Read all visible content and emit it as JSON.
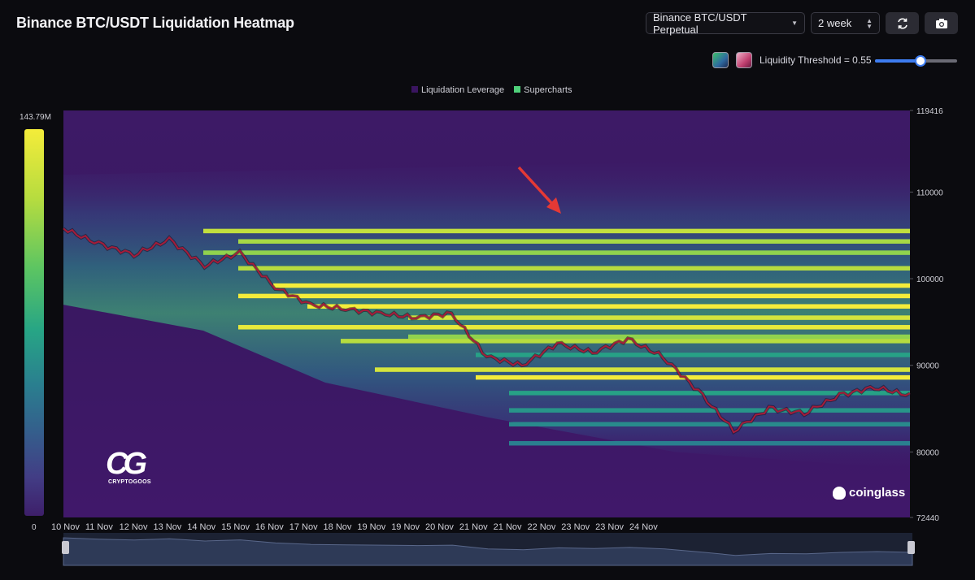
{
  "header": {
    "title": "Binance BTC/USDT Liquidation Heatmap",
    "pair_select": "Binance BTC/USDT Perpetual",
    "range_select": "2 week",
    "refresh_icon": "refresh-icon",
    "camera_icon": "camera-icon"
  },
  "controls": {
    "threshold_label": "Liquidity Threshold = 0.55",
    "threshold_value": 0.55
  },
  "colors": {
    "accent": "#3d7cf0",
    "liquidation_leverage": "#3a1560",
    "supercharts": "#4fd07a",
    "price_line": "#a51c3a"
  },
  "legend": {
    "liquidation_leverage": "Liquidation Leverage",
    "supercharts": "Supercharts"
  },
  "colorbar": {
    "max_label": "143.79M",
    "min_label": "0"
  },
  "watermarks": {
    "cryptogoos": "CRYPTOGOOS",
    "coinglass": "coinglass"
  },
  "chart_data": {
    "type": "heatmap",
    "title": "Binance BTC/USDT Liquidation Heatmap",
    "x_labels": [
      "10 Nov",
      "11 Nov",
      "12 Nov",
      "13 Nov",
      "14 Nov",
      "15 Nov",
      "16 Nov",
      "17 Nov",
      "18 Nov",
      "19 Nov",
      "19 Nov",
      "20 Nov",
      "21 Nov",
      "21 Nov",
      "22 Nov",
      "23 Nov",
      "23 Nov",
      "24 Nov"
    ],
    "y_labels": [
      "119416",
      "110000",
      "100000",
      "90000",
      "80000",
      "72440"
    ],
    "ylim": [
      72440,
      119416
    ],
    "color_range": [
      0,
      143790000
    ],
    "price_path": {
      "x": [
        "10 Nov",
        "11 Nov",
        "12 Nov",
        "12 Nov",
        "13 Nov",
        "13 Nov",
        "14 Nov",
        "14 Nov",
        "15 Nov",
        "16 Nov",
        "17 Nov",
        "17 Nov",
        "18 Nov",
        "18 Nov",
        "19 Nov",
        "19 Nov",
        "20 Nov",
        "20 Nov",
        "21 Nov",
        "21 Nov",
        "22 Nov",
        "22 Nov",
        "23 Nov",
        "24 Nov",
        "24 Nov"
      ],
      "price": [
        105800,
        104000,
        102800,
        104500,
        101500,
        103000,
        99000,
        97000,
        96500,
        96000,
        95500,
        96000,
        91000,
        90000,
        92500,
        91500,
        93000,
        91000,
        87000,
        82500,
        85000,
        84500,
        86500,
        87500,
        86500
      ]
    },
    "bands": [
      {
        "price": 105500,
        "start": "13 Nov",
        "intensity": 0.92
      },
      {
        "price": 104300,
        "start": "14 Nov",
        "intensity": 0.88
      },
      {
        "price": 103000,
        "start": "13 Nov",
        "intensity": 0.85
      },
      {
        "price": 101200,
        "start": "14 Nov",
        "intensity": 0.9
      },
      {
        "price": 99200,
        "start": "15 Nov",
        "intensity": 1.0
      },
      {
        "price": 98000,
        "start": "14 Nov",
        "intensity": 1.0
      },
      {
        "price": 96800,
        "start": "16 Nov",
        "intensity": 1.0
      },
      {
        "price": 95500,
        "start": "19 Nov",
        "intensity": 0.95
      },
      {
        "price": 94400,
        "start": "14 Nov",
        "intensity": 0.98
      },
      {
        "price": 93300,
        "start": "19 Nov",
        "intensity": 0.85
      },
      {
        "price": 92800,
        "start": "17 Nov",
        "intensity": 0.9
      },
      {
        "price": 91200,
        "start": "20 Nov",
        "intensity": 0.6
      },
      {
        "price": 89500,
        "start": "18 Nov",
        "intensity": 0.95
      },
      {
        "price": 88600,
        "start": "20 Nov",
        "intensity": 1.0
      },
      {
        "price": 86800,
        "start": "21 Nov",
        "intensity": 0.6
      },
      {
        "price": 84800,
        "start": "21 Nov",
        "intensity": 0.55
      },
      {
        "price": 83200,
        "start": "21 Nov",
        "intensity": 0.5
      },
      {
        "price": 81000,
        "start": "21 Nov",
        "intensity": 0.45
      }
    ]
  }
}
